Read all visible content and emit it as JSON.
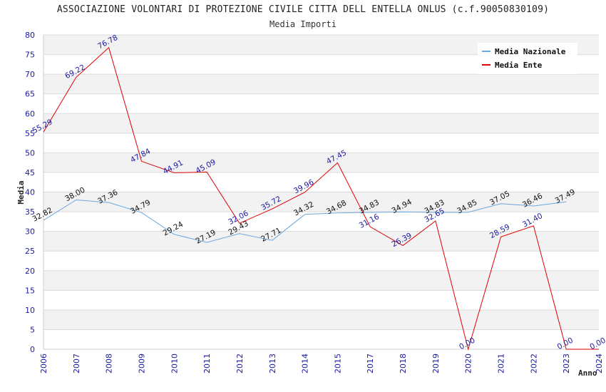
{
  "chart_data": {
    "type": "line",
    "title": "ASSOCIAZIONE VOLONTARI DI PROTEZIONE CIVILE CITTA DELL ENTELLA ONLUS (c.f.90050830109)",
    "subtitle": "Media Importi",
    "xlabel": "Anno",
    "ylabel": "Media",
    "ylim": [
      0,
      80
    ],
    "yticks": [
      "0",
      "5",
      "10",
      "15",
      "20",
      "25",
      "30",
      "35",
      "40",
      "45",
      "50",
      "55",
      "60",
      "65",
      "70",
      "75",
      "80"
    ],
    "categories": [
      "2006",
      "2007",
      "2008",
      "2009",
      "2010",
      "2011",
      "2012",
      "2013",
      "2014",
      "2015",
      "2017",
      "2018",
      "2019",
      "2020",
      "2021",
      "2022",
      "2023",
      "2024"
    ],
    "series": [
      {
        "name": "Media Nazionale",
        "color": "#6aa8e0",
        "label_color": "#111111",
        "values": [
          32.82,
          38.0,
          37.36,
          34.79,
          29.24,
          27.19,
          29.43,
          27.71,
          34.32,
          34.68,
          34.83,
          34.94,
          34.83,
          34.85,
          37.05,
          36.46,
          37.49,
          null
        ],
        "labels": [
          "32.82",
          "38.00",
          "37.36",
          "34.79",
          "29.24",
          "27.19",
          "29.43",
          "27.71",
          "34.32",
          "34.68",
          "34.83",
          "34.94",
          "34.83",
          "34.85",
          "37.05",
          "36.46",
          "37.49",
          ""
        ]
      },
      {
        "name": "Media Ente",
        "color": "#e00000",
        "label_color": "#1a1aa0",
        "values": [
          55.29,
          69.22,
          76.78,
          47.84,
          44.91,
          45.09,
          32.06,
          35.72,
          39.96,
          47.45,
          31.16,
          26.39,
          32.65,
          0.0,
          28.59,
          31.4,
          0.0,
          0.0
        ],
        "labels": [
          "55.29",
          "69.22",
          "76.78",
          "47.84",
          "44.91",
          "45.09",
          "32.06",
          "35.72",
          "39.96",
          "47.45",
          "31.16",
          "26.39",
          "32.65",
          "0.00",
          "28.59",
          "31.40",
          "0.00",
          "0.00"
        ]
      }
    ],
    "grid": true,
    "legend_position": "top-right"
  }
}
